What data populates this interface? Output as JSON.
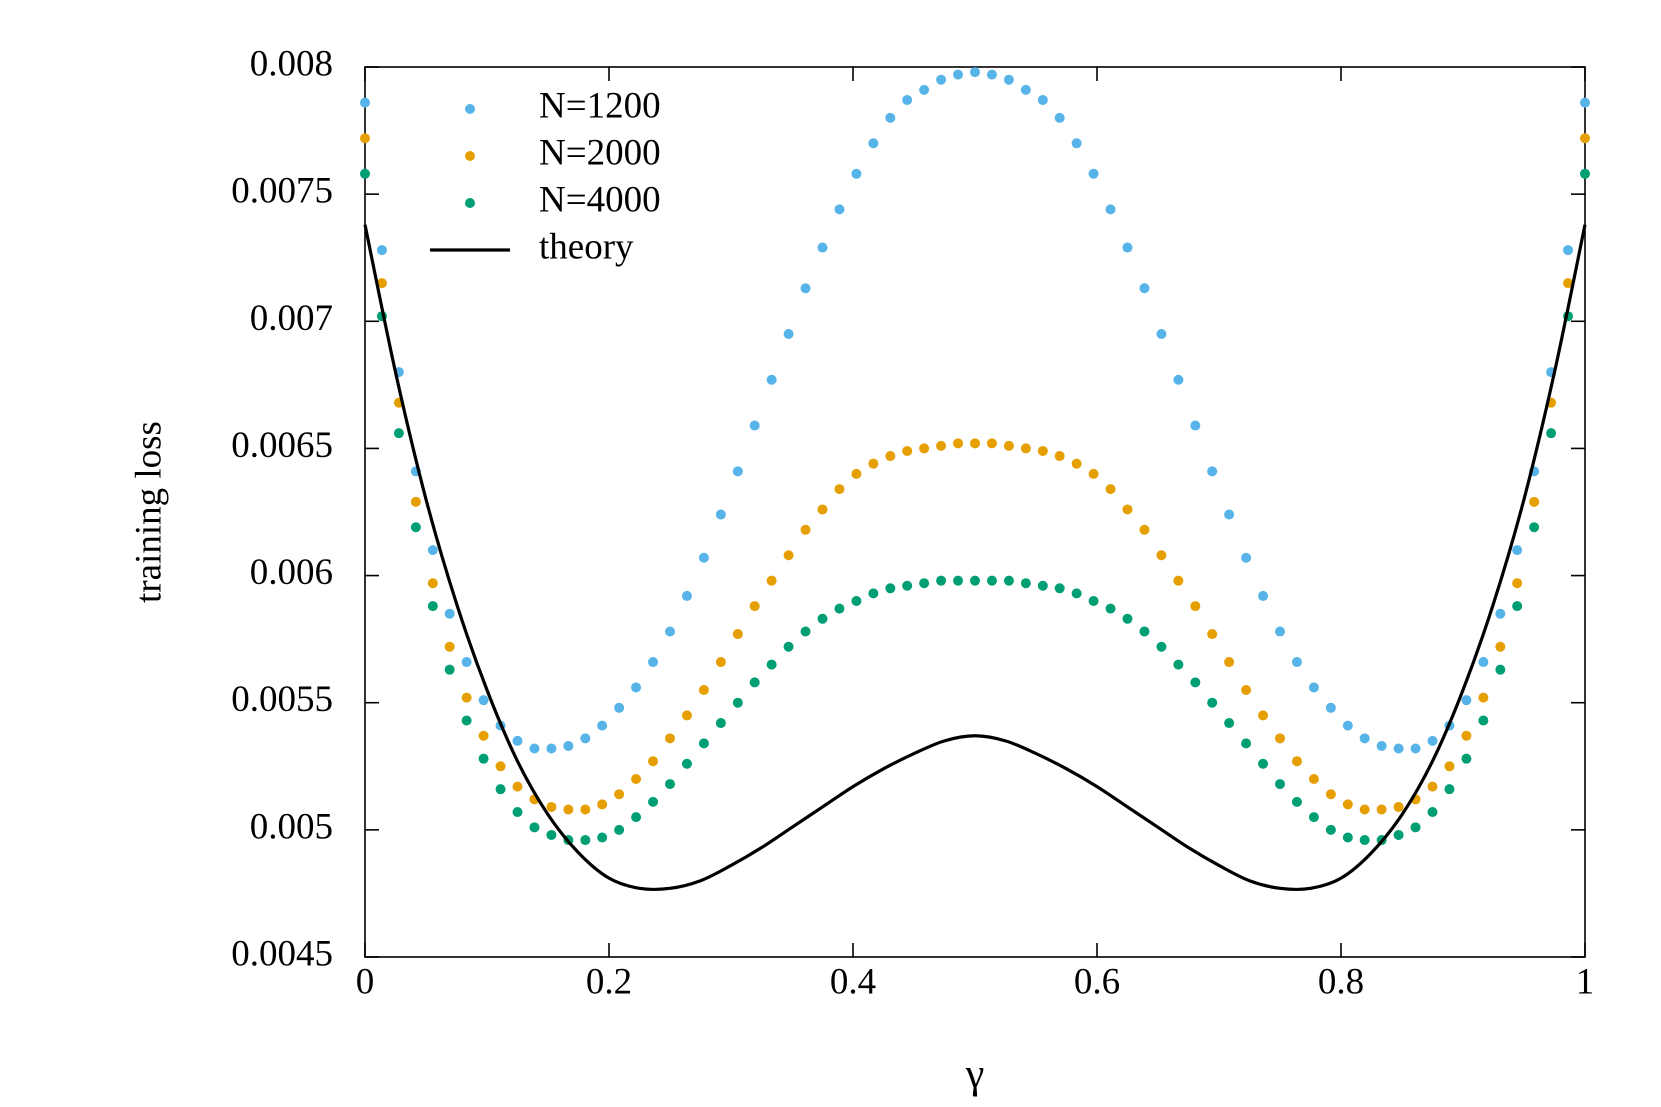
{
  "chart_data": {
    "type": "scatter",
    "xlabel": "γ",
    "ylabel": "training loss",
    "xlim": [
      0,
      1
    ],
    "ylim": [
      0.0045,
      0.008
    ],
    "xticks": [
      0,
      0.2,
      0.4,
      0.6,
      0.8,
      1
    ],
    "yticks": [
      0.0045,
      0.005,
      0.0055,
      0.006,
      0.0065,
      0.007,
      0.0075,
      0.008
    ],
    "legend": "upper left",
    "series": [
      {
        "name": "N=1200",
        "color": "#56b4e9",
        "type": "scatter",
        "x": [
          0,
          0.0139,
          0.0278,
          0.0417,
          0.0556,
          0.0694,
          0.0833,
          0.0972,
          0.1111,
          0.125,
          0.1389,
          0.1528,
          0.1667,
          0.1806,
          0.1944,
          0.2083,
          0.2222,
          0.2361,
          0.25,
          0.2639,
          0.2778,
          0.2917,
          0.3056,
          0.3194,
          0.3333,
          0.3472,
          0.3611,
          0.375,
          0.3889,
          0.4028,
          0.4167,
          0.4306,
          0.4444,
          0.4583,
          0.4722,
          0.4861,
          0.5,
          0.5139,
          0.5278,
          0.5417,
          0.5556,
          0.5694,
          0.5833,
          0.5972,
          0.6111,
          0.625,
          0.6389,
          0.6528,
          0.6667,
          0.6806,
          0.6944,
          0.7083,
          0.7222,
          0.7361,
          0.75,
          0.7639,
          0.7778,
          0.7917,
          0.8056,
          0.8194,
          0.8333,
          0.8472,
          0.8611,
          0.875,
          0.8889,
          0.9028,
          0.9167,
          0.9306,
          0.9444,
          0.9583,
          0.9722,
          0.9861,
          1
        ],
        "values": [
          0.00786,
          0.00728,
          0.0068,
          0.00641,
          0.0061,
          0.00585,
          0.00566,
          0.00551,
          0.00541,
          0.00535,
          0.00532,
          0.00532,
          0.00533,
          0.00536,
          0.00541,
          0.00548,
          0.00556,
          0.00566,
          0.00578,
          0.00592,
          0.00607,
          0.00624,
          0.00641,
          0.00659,
          0.00677,
          0.00695,
          0.00713,
          0.00729,
          0.00744,
          0.00758,
          0.0077,
          0.0078,
          0.00787,
          0.00791,
          0.00795,
          0.00797,
          0.00798,
          0.00797,
          0.00795,
          0.00791,
          0.00787,
          0.0078,
          0.0077,
          0.00758,
          0.00744,
          0.00729,
          0.00713,
          0.00695,
          0.00677,
          0.00659,
          0.00641,
          0.00624,
          0.00607,
          0.00592,
          0.00578,
          0.00566,
          0.00556,
          0.00548,
          0.00541,
          0.00536,
          0.00533,
          0.00532,
          0.00532,
          0.00535,
          0.00541,
          0.00551,
          0.00566,
          0.00585,
          0.0061,
          0.00641,
          0.0068,
          0.00728,
          0.00786
        ]
      },
      {
        "name": "N=2000",
        "color": "#e69f00",
        "type": "scatter",
        "x": [
          0,
          0.0139,
          0.0278,
          0.0417,
          0.0556,
          0.0694,
          0.0833,
          0.0972,
          0.1111,
          0.125,
          0.1389,
          0.1528,
          0.1667,
          0.1806,
          0.1944,
          0.2083,
          0.2222,
          0.2361,
          0.25,
          0.2639,
          0.2778,
          0.2917,
          0.3056,
          0.3194,
          0.3333,
          0.3472,
          0.3611,
          0.375,
          0.3889,
          0.4028,
          0.4167,
          0.4306,
          0.4444,
          0.4583,
          0.4722,
          0.4861,
          0.5,
          0.5139,
          0.5278,
          0.5417,
          0.5556,
          0.5694,
          0.5833,
          0.5972,
          0.6111,
          0.625,
          0.6389,
          0.6528,
          0.6667,
          0.6806,
          0.6944,
          0.7083,
          0.7222,
          0.7361,
          0.75,
          0.7639,
          0.7778,
          0.7917,
          0.8056,
          0.8194,
          0.8333,
          0.8472,
          0.8611,
          0.875,
          0.8889,
          0.9028,
          0.9167,
          0.9306,
          0.9444,
          0.9583,
          0.9722,
          0.9861,
          1
        ],
        "values": [
          0.00772,
          0.00715,
          0.00668,
          0.00629,
          0.00597,
          0.00572,
          0.00552,
          0.00537,
          0.00525,
          0.00517,
          0.00512,
          0.00509,
          0.00508,
          0.00508,
          0.0051,
          0.00514,
          0.0052,
          0.00527,
          0.00536,
          0.00545,
          0.00555,
          0.00566,
          0.00577,
          0.00588,
          0.00598,
          0.00608,
          0.00618,
          0.00626,
          0.00634,
          0.0064,
          0.00644,
          0.00647,
          0.00649,
          0.0065,
          0.00651,
          0.00652,
          0.00652,
          0.00652,
          0.00651,
          0.0065,
          0.00649,
          0.00647,
          0.00644,
          0.0064,
          0.00634,
          0.00626,
          0.00618,
          0.00608,
          0.00598,
          0.00588,
          0.00577,
          0.00566,
          0.00555,
          0.00545,
          0.00536,
          0.00527,
          0.0052,
          0.00514,
          0.0051,
          0.00508,
          0.00508,
          0.00509,
          0.00512,
          0.00517,
          0.00525,
          0.00537,
          0.00552,
          0.00572,
          0.00597,
          0.00629,
          0.00668,
          0.00715,
          0.00772
        ]
      },
      {
        "name": "N=4000",
        "color": "#009e73",
        "type": "scatter",
        "x": [
          0,
          0.0139,
          0.0278,
          0.0417,
          0.0556,
          0.0694,
          0.0833,
          0.0972,
          0.1111,
          0.125,
          0.1389,
          0.1528,
          0.1667,
          0.1806,
          0.1944,
          0.2083,
          0.2222,
          0.2361,
          0.25,
          0.2639,
          0.2778,
          0.2917,
          0.3056,
          0.3194,
          0.3333,
          0.3472,
          0.3611,
          0.375,
          0.3889,
          0.4028,
          0.4167,
          0.4306,
          0.4444,
          0.4583,
          0.4722,
          0.4861,
          0.5,
          0.5139,
          0.5278,
          0.5417,
          0.5556,
          0.5694,
          0.5833,
          0.5972,
          0.6111,
          0.625,
          0.6389,
          0.6528,
          0.6667,
          0.6806,
          0.6944,
          0.7083,
          0.7222,
          0.7361,
          0.75,
          0.7639,
          0.7778,
          0.7917,
          0.8056,
          0.8194,
          0.8333,
          0.8472,
          0.8611,
          0.875,
          0.8889,
          0.9028,
          0.9167,
          0.9306,
          0.9444,
          0.9583,
          0.9722,
          0.9861,
          1
        ],
        "values": [
          0.00758,
          0.00702,
          0.00656,
          0.00619,
          0.00588,
          0.00563,
          0.00543,
          0.00528,
          0.00516,
          0.00507,
          0.00501,
          0.00498,
          0.00496,
          0.00496,
          0.00497,
          0.005,
          0.00505,
          0.00511,
          0.00518,
          0.00526,
          0.00534,
          0.00542,
          0.0055,
          0.00558,
          0.00565,
          0.00572,
          0.00578,
          0.00583,
          0.00587,
          0.0059,
          0.00593,
          0.00595,
          0.00596,
          0.00597,
          0.00598,
          0.00598,
          0.00598,
          0.00598,
          0.00598,
          0.00597,
          0.00596,
          0.00595,
          0.00593,
          0.0059,
          0.00587,
          0.00583,
          0.00578,
          0.00572,
          0.00565,
          0.00558,
          0.0055,
          0.00542,
          0.00534,
          0.00526,
          0.00518,
          0.00511,
          0.00505,
          0.005,
          0.00497,
          0.00496,
          0.00496,
          0.00498,
          0.00501,
          0.00507,
          0.00516,
          0.00528,
          0.00543,
          0.00563,
          0.00588,
          0.00619,
          0.00656,
          0.00702,
          0.00758
        ]
      },
      {
        "name": "theory",
        "color": "#000000",
        "type": "line",
        "x": [
          0,
          0.025,
          0.05,
          0.075,
          0.1,
          0.125,
          0.15,
          0.175,
          0.2,
          0.225,
          0.25,
          0.275,
          0.3,
          0.325,
          0.35,
          0.375,
          0.4,
          0.425,
          0.45,
          0.475,
          0.5,
          0.525,
          0.55,
          0.575,
          0.6,
          0.625,
          0.65,
          0.675,
          0.7,
          0.725,
          0.75,
          0.775,
          0.8,
          0.825,
          0.85,
          0.875,
          0.9,
          0.925,
          0.95,
          0.975,
          1
        ],
        "values": [
          0.00738,
          0.0068,
          0.0063,
          0.00589,
          0.00555,
          0.00527,
          0.00506,
          0.00491,
          0.00481,
          0.00477,
          0.00477,
          0.0048,
          0.00486,
          0.00493,
          0.00501,
          0.00509,
          0.00517,
          0.00524,
          0.0053,
          0.00535,
          0.00537,
          0.00535,
          0.0053,
          0.00524,
          0.00517,
          0.00509,
          0.00501,
          0.00493,
          0.00486,
          0.0048,
          0.00477,
          0.00477,
          0.00481,
          0.00491,
          0.00506,
          0.00527,
          0.00555,
          0.00589,
          0.0063,
          0.0068,
          0.00738
        ]
      }
    ]
  }
}
